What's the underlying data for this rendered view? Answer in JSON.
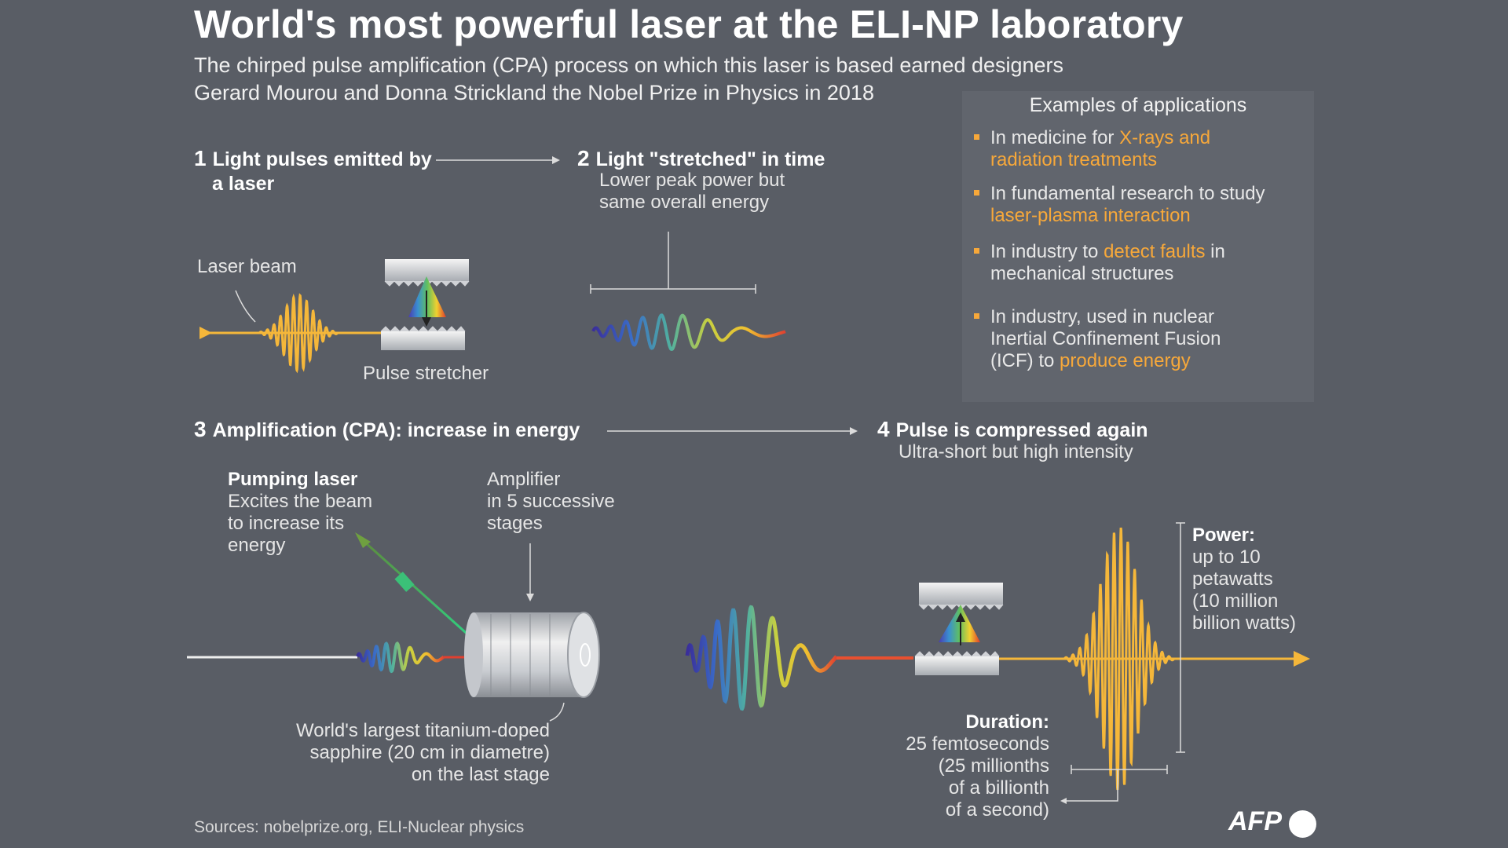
{
  "title": "World's most powerful laser at the ELI-NP laboratory",
  "subtitle": {
    "line1": "The chirped pulse amplification (CPA) process on which this laser is based earned designers",
    "line2": "Gerard Mourou and Donna Strickland the Nobel Prize in Physics in 2018"
  },
  "steps": [
    {
      "num": "1",
      "line1": "Light pulses emitted by",
      "line2": "a laser"
    },
    {
      "num": "2",
      "line1": "Light \"stretched\" in time",
      "desc1": "Lower peak power but",
      "desc2": "same overall energy"
    },
    {
      "num": "3",
      "line1": "Amplification (CPA): increase in energy"
    },
    {
      "num": "4",
      "line1": "Pulse is compressed again",
      "desc1": "Ultra-short but high intensity"
    }
  ],
  "labels": {
    "laser_beam": "Laser beam",
    "pulse_stretcher": "Pulse stretcher",
    "pumping_title": "Pumping laser",
    "pumping_1": "Excites the beam",
    "pumping_2": "to increase its",
    "pumping_3": "energy",
    "amp_1": "Amplifier",
    "amp_2": "in 5 successive",
    "amp_3": "stages",
    "sapphire_1": "World's largest titanium-doped",
    "sapphire_2": "sapphire (20 cm in diametre)",
    "sapphire_3": "on the last stage",
    "power_title": "Power:",
    "power_1": "up to 10",
    "power_2": "petawatts",
    "power_3": "(10 million",
    "power_4": "billion watts)",
    "duration_title": "Duration:",
    "duration_1": "25 femtoseconds",
    "duration_2": "(25 millionths",
    "duration_3": "of a  billionth",
    "duration_4": "of  a second)"
  },
  "applications": {
    "title": "Examples of applications",
    "items": [
      {
        "pre": "In medicine for ",
        "hl1": "X-rays and",
        "hl2": "radiation treatments",
        "post": ""
      },
      {
        "pre": "In fundamental research to study",
        "hl1": "",
        "hl2": "laser-plasma interaction",
        "post": ""
      },
      {
        "pre": "In industry to ",
        "hl1": "detect faults",
        "post": " in",
        "line2": "mechanical structures"
      },
      {
        "pre": "In industry, used in nuclear",
        "line2": "Inertial Confinement Fusion",
        "line3pre": "(ICF)  to ",
        "hl": "produce energy"
      }
    ]
  },
  "sources": "Sources: nobelprize.org, ELI-Nuclear physics",
  "credit": "AFP",
  "colors": {
    "accent": "#f7a83a",
    "background": "#595d65",
    "beam": "#f5b73a"
  }
}
